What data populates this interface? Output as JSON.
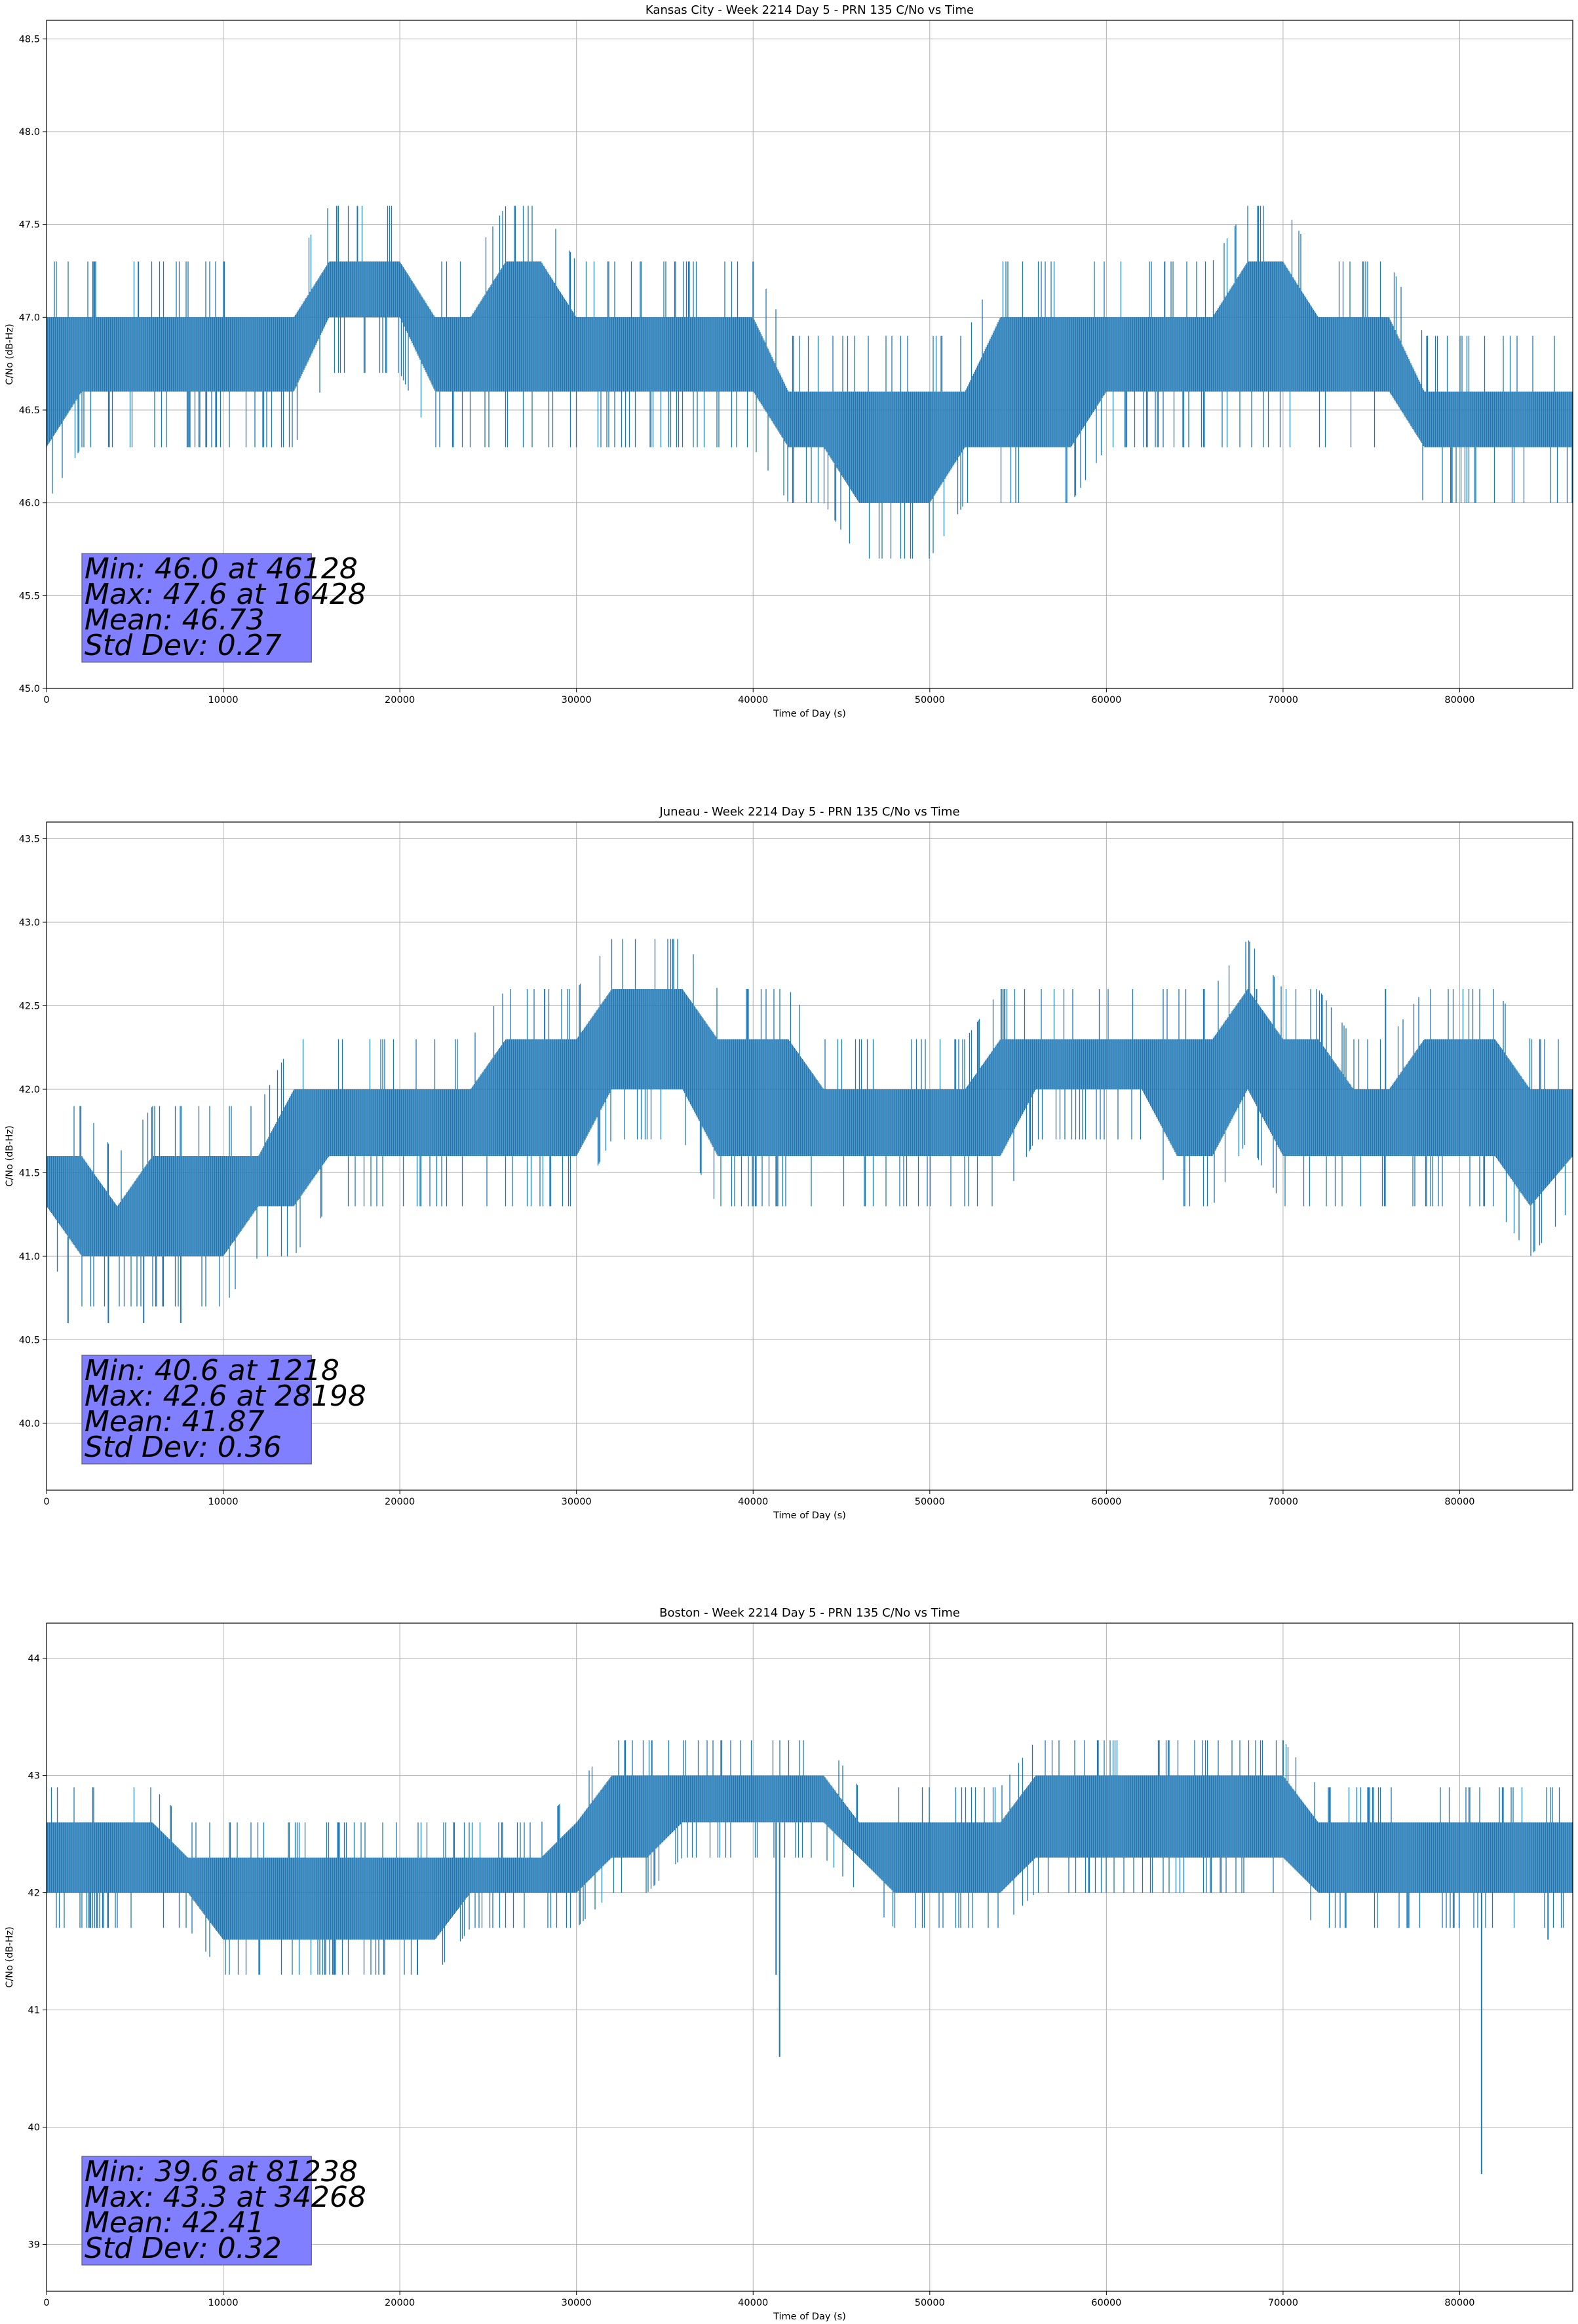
{
  "chart_data": [
    {
      "type": "line",
      "title": "Kansas City - Week 2214 Day 5 - PRN 135 C/No vs Time",
      "xlabel": "Time of Day (s)",
      "ylabel": "C/No (dB-Hz)",
      "xlim": [
        0,
        86400
      ],
      "ylim": [
        45.0,
        48.6
      ],
      "xticks": [
        0,
        10000,
        20000,
        30000,
        40000,
        50000,
        60000,
        70000,
        80000
      ],
      "xtick_labels": [
        "0",
        "10000",
        "20000",
        "30000",
        "40000",
        "50000",
        "60000",
        "70000",
        "80000"
      ],
      "yticks": [
        45.0,
        45.5,
        46.0,
        46.5,
        47.0,
        47.5,
        48.0,
        48.5
      ],
      "ytick_labels": [
        "45.0",
        "45.5",
        "46.0",
        "46.5",
        "47.0",
        "47.5",
        "48.0",
        "48.5"
      ],
      "grid": true,
      "color": "#1f77b4",
      "series": [
        {
          "x": [
            0,
            2000,
            4000,
            6000,
            8000,
            10000,
            12000,
            14000,
            16000,
            18000,
            20000,
            22000,
            24000,
            26000,
            28000,
            30000,
            32000,
            34000,
            36000,
            38000,
            40000,
            42000,
            44000,
            46000,
            48000,
            50000,
            52000,
            54000,
            56000,
            58000,
            60000,
            62000,
            64000,
            66000,
            68000,
            70000,
            72000,
            74000,
            76000,
            78000,
            80000,
            82000,
            84000,
            86400
          ],
          "low": [
            46.3,
            46.6,
            46.6,
            46.6,
            46.6,
            46.6,
            46.6,
            46.6,
            47.0,
            47.0,
            47.0,
            46.6,
            46.6,
            46.6,
            46.6,
            46.6,
            46.6,
            46.6,
            46.6,
            46.6,
            46.6,
            46.3,
            46.3,
            46.0,
            46.0,
            46.0,
            46.3,
            46.3,
            46.3,
            46.3,
            46.6,
            46.6,
            46.6,
            46.6,
            46.6,
            46.6,
            46.6,
            46.6,
            46.6,
            46.3,
            46.3,
            46.3,
            46.3,
            46.3
          ],
          "high": [
            47.0,
            47.0,
            47.0,
            47.0,
            47.0,
            47.0,
            47.0,
            47.0,
            47.3,
            47.3,
            47.3,
            47.0,
            47.0,
            47.3,
            47.3,
            47.0,
            47.0,
            47.0,
            47.0,
            47.0,
            47.0,
            46.6,
            46.6,
            46.6,
            46.6,
            46.6,
            46.6,
            47.0,
            47.0,
            47.0,
            47.0,
            47.0,
            47.0,
            47.0,
            47.3,
            47.3,
            47.0,
            47.0,
            47.0,
            46.6,
            46.6,
            46.6,
            46.6,
            46.6
          ],
          "spikes": [
            [
              16428,
              47.6
            ],
            [
              17600,
              47.6
            ],
            [
              46128,
              46.0
            ],
            [
              79500,
              46.0
            ],
            [
              5200,
              47.3
            ],
            [
              40000,
              47.3
            ],
            [
              63300,
              47.3
            ]
          ]
        }
      ],
      "annotation": [
        "Min: 46.0 at 46128",
        "Max: 47.6 at 16428",
        "Mean: 46.73",
        "Std Dev: 0.27"
      ]
    },
    {
      "type": "line",
      "title": "Juneau - Week 2214 Day 5 - PRN 135 C/No vs Time",
      "xlabel": "Time of Day (s)",
      "ylabel": "C/No (dB-Hz)",
      "xlim": [
        0,
        86400
      ],
      "ylim": [
        39.6,
        43.6
      ],
      "xticks": [
        0,
        10000,
        20000,
        30000,
        40000,
        50000,
        60000,
        70000,
        80000
      ],
      "xtick_labels": [
        "0",
        "10000",
        "20000",
        "30000",
        "40000",
        "50000",
        "60000",
        "70000",
        "80000"
      ],
      "yticks": [
        40.0,
        40.5,
        41.0,
        41.5,
        42.0,
        42.5,
        43.0,
        43.5
      ],
      "ytick_labels": [
        "40.0",
        "40.5",
        "41.0",
        "41.5",
        "42.0",
        "42.5",
        "43.0",
        "43.5"
      ],
      "grid": true,
      "color": "#1f77b4",
      "series": [
        {
          "x": [
            0,
            2000,
            4000,
            6000,
            8000,
            10000,
            12000,
            14000,
            16000,
            18000,
            20000,
            22000,
            24000,
            26000,
            28000,
            30000,
            32000,
            34000,
            36000,
            38000,
            40000,
            42000,
            44000,
            46000,
            48000,
            50000,
            52000,
            54000,
            56000,
            58000,
            60000,
            62000,
            64000,
            66000,
            68000,
            70000,
            72000,
            74000,
            76000,
            78000,
            80000,
            82000,
            84000,
            86400
          ],
          "low": [
            41.3,
            41.0,
            41.0,
            41.0,
            41.0,
            41.0,
            41.3,
            41.3,
            41.6,
            41.6,
            41.6,
            41.6,
            41.6,
            41.6,
            41.6,
            41.6,
            42.0,
            42.0,
            42.0,
            41.6,
            41.6,
            41.6,
            41.6,
            41.6,
            41.6,
            41.6,
            41.6,
            41.6,
            42.0,
            42.0,
            42.0,
            42.0,
            41.6,
            41.6,
            42.0,
            41.6,
            41.6,
            41.6,
            41.6,
            41.6,
            41.6,
            41.6,
            41.3,
            41.6
          ],
          "high": [
            41.6,
            41.6,
            41.3,
            41.6,
            41.6,
            41.6,
            41.6,
            42.0,
            42.0,
            42.0,
            42.0,
            42.0,
            42.0,
            42.3,
            42.3,
            42.3,
            42.6,
            42.6,
            42.6,
            42.3,
            42.3,
            42.3,
            42.0,
            42.0,
            42.0,
            42.0,
            42.0,
            42.3,
            42.3,
            42.3,
            42.3,
            42.3,
            42.3,
            42.3,
            42.6,
            42.3,
            42.3,
            42.0,
            42.0,
            42.3,
            42.3,
            42.3,
            42.0,
            42.0
          ],
          "spikes": [
            [
              1218,
              40.6
            ],
            [
              3500,
              40.6
            ],
            [
              5500,
              40.6
            ],
            [
              7600,
              40.6
            ],
            [
              28198,
              42.6
            ],
            [
              75800,
              42.6
            ],
            [
              68500,
              42.6
            ]
          ]
        }
      ],
      "annotation": [
        "Min: 40.6 at 1218",
        "Max: 42.6 at 28198",
        "Mean: 41.87",
        "Std Dev: 0.36"
      ]
    },
    {
      "type": "line",
      "title": "Boston - Week 2214 Day 5 - PRN 135 C/No vs Time",
      "xlabel": "Time of Day (s)",
      "ylabel": "C/No (dB-Hz)",
      "xlim": [
        0,
        86400
      ],
      "ylim": [
        38.6,
        44.3
      ],
      "xticks": [
        0,
        10000,
        20000,
        30000,
        40000,
        50000,
        60000,
        70000,
        80000
      ],
      "xtick_labels": [
        "0",
        "10000",
        "20000",
        "30000",
        "40000",
        "50000",
        "60000",
        "70000",
        "80000"
      ],
      "yticks": [
        39,
        40,
        41,
        42,
        43,
        44
      ],
      "ytick_labels": [
        "39",
        "40",
        "41",
        "42",
        "43",
        "44"
      ],
      "grid": true,
      "color": "#1f77b4",
      "series": [
        {
          "x": [
            0,
            2000,
            4000,
            6000,
            8000,
            10000,
            12000,
            14000,
            16000,
            18000,
            20000,
            22000,
            24000,
            26000,
            28000,
            30000,
            32000,
            34000,
            36000,
            38000,
            40000,
            42000,
            44000,
            46000,
            48000,
            50000,
            52000,
            54000,
            56000,
            58000,
            60000,
            62000,
            64000,
            66000,
            68000,
            70000,
            72000,
            74000,
            76000,
            78000,
            80000,
            82000,
            84000,
            86400
          ],
          "low": [
            42.0,
            42.0,
            42.0,
            42.0,
            42.0,
            41.6,
            41.6,
            41.6,
            41.6,
            41.6,
            41.6,
            41.6,
            42.0,
            42.0,
            42.0,
            42.0,
            42.3,
            42.3,
            42.6,
            42.6,
            42.6,
            42.6,
            42.6,
            42.3,
            42.0,
            42.0,
            42.0,
            42.0,
            42.3,
            42.3,
            42.3,
            42.3,
            42.3,
            42.3,
            42.3,
            42.3,
            42.0,
            42.0,
            42.0,
            42.0,
            42.0,
            42.0,
            42.0,
            42.0
          ],
          "high": [
            42.6,
            42.6,
            42.6,
            42.6,
            42.3,
            42.3,
            42.3,
            42.3,
            42.3,
            42.3,
            42.3,
            42.3,
            42.3,
            42.3,
            42.3,
            42.6,
            43.0,
            43.0,
            43.0,
            43.0,
            43.0,
            43.0,
            43.0,
            42.6,
            42.6,
            42.6,
            42.6,
            42.6,
            43.0,
            43.0,
            43.0,
            43.0,
            43.0,
            43.0,
            43.0,
            43.0,
            42.6,
            42.6,
            42.6,
            42.6,
            42.6,
            42.6,
            42.6,
            42.6
          ],
          "spikes": [
            [
              81238,
              39.6
            ],
            [
              41500,
              40.6
            ],
            [
              41300,
              41.3
            ],
            [
              21000,
              41.3
            ],
            [
              34268,
              43.3
            ],
            [
              59500,
              43.3
            ],
            [
              70000,
              43.3
            ],
            [
              85000,
              41.6
            ]
          ]
        }
      ],
      "annotation": [
        "Min: 39.6 at 81238",
        "Max: 43.3 at 34268",
        "Mean: 42.41",
        "Std Dev: 0.32"
      ]
    }
  ]
}
